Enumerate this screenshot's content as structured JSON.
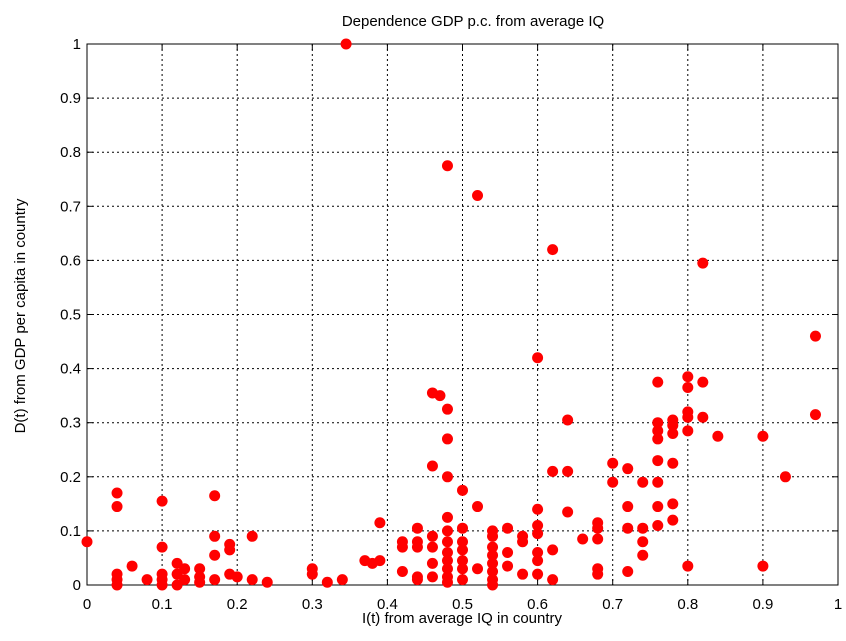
{
  "chart_data": {
    "type": "scatter",
    "title": "Dependence GDP p.c. from average IQ",
    "xlabel": "I(t) from average IQ in country",
    "ylabel": "D(t) from GDP per capita in country",
    "xlim": [
      0,
      1
    ],
    "ylim": [
      0,
      1
    ],
    "xticks": [
      "0",
      "0.1",
      "0.2",
      "0.3",
      "0.4",
      "0.5",
      "0.6",
      "0.7",
      "0.8",
      "0.9",
      "1"
    ],
    "yticks": [
      "0",
      "0.1",
      "0.2",
      "0.3",
      "0.4",
      "0.5",
      "0.6",
      "0.7",
      "0.8",
      "0.9",
      "1"
    ],
    "grid": true,
    "marker_color": "#ff0000",
    "points": [
      [
        0.0,
        0.08
      ],
      [
        0.04,
        0.17
      ],
      [
        0.04,
        0.145
      ],
      [
        0.04,
        0.02
      ],
      [
        0.04,
        0.01
      ],
      [
        0.04,
        0.0
      ],
      [
        0.06,
        0.035
      ],
      [
        0.08,
        0.01
      ],
      [
        0.1,
        0.155
      ],
      [
        0.1,
        0.07
      ],
      [
        0.1,
        0.02
      ],
      [
        0.1,
        0.01
      ],
      [
        0.1,
        0.0
      ],
      [
        0.12,
        0.04
      ],
      [
        0.12,
        0.02
      ],
      [
        0.12,
        0.0
      ],
      [
        0.13,
        0.03
      ],
      [
        0.13,
        0.01
      ],
      [
        0.15,
        0.03
      ],
      [
        0.15,
        0.015
      ],
      [
        0.15,
        0.005
      ],
      [
        0.17,
        0.165
      ],
      [
        0.17,
        0.09
      ],
      [
        0.17,
        0.055
      ],
      [
        0.17,
        0.01
      ],
      [
        0.19,
        0.075
      ],
      [
        0.19,
        0.065
      ],
      [
        0.19,
        0.02
      ],
      [
        0.2,
        0.015
      ],
      [
        0.22,
        0.09
      ],
      [
        0.22,
        0.01
      ],
      [
        0.24,
        0.005
      ],
      [
        0.3,
        0.03
      ],
      [
        0.3,
        0.02
      ],
      [
        0.32,
        0.005
      ],
      [
        0.34,
        0.01
      ],
      [
        0.345,
        1.0
      ],
      [
        0.37,
        0.045
      ],
      [
        0.38,
        0.04
      ],
      [
        0.39,
        0.115
      ],
      [
        0.39,
        0.045
      ],
      [
        0.42,
        0.08
      ],
      [
        0.42,
        0.07
      ],
      [
        0.42,
        0.025
      ],
      [
        0.44,
        0.105
      ],
      [
        0.44,
        0.08
      ],
      [
        0.44,
        0.07
      ],
      [
        0.44,
        0.015
      ],
      [
        0.44,
        0.01
      ],
      [
        0.46,
        0.355
      ],
      [
        0.46,
        0.22
      ],
      [
        0.46,
        0.09
      ],
      [
        0.46,
        0.07
      ],
      [
        0.46,
        0.04
      ],
      [
        0.46,
        0.015
      ],
      [
        0.47,
        0.35
      ],
      [
        0.48,
        0.775
      ],
      [
        0.48,
        0.325
      ],
      [
        0.48,
        0.27
      ],
      [
        0.48,
        0.2
      ],
      [
        0.48,
        0.125
      ],
      [
        0.48,
        0.1
      ],
      [
        0.48,
        0.08
      ],
      [
        0.48,
        0.06
      ],
      [
        0.48,
        0.045
      ],
      [
        0.48,
        0.03
      ],
      [
        0.48,
        0.015
      ],
      [
        0.48,
        0.005
      ],
      [
        0.5,
        0.175
      ],
      [
        0.5,
        0.105
      ],
      [
        0.5,
        0.08
      ],
      [
        0.5,
        0.065
      ],
      [
        0.5,
        0.045
      ],
      [
        0.5,
        0.03
      ],
      [
        0.5,
        0.01
      ],
      [
        0.52,
        0.72
      ],
      [
        0.52,
        0.145
      ],
      [
        0.52,
        0.03
      ],
      [
        0.54,
        0.1
      ],
      [
        0.54,
        0.09
      ],
      [
        0.54,
        0.07
      ],
      [
        0.54,
        0.055
      ],
      [
        0.54,
        0.04
      ],
      [
        0.54,
        0.025
      ],
      [
        0.54,
        0.01
      ],
      [
        0.54,
        0.0
      ],
      [
        0.56,
        0.105
      ],
      [
        0.56,
        0.06
      ],
      [
        0.56,
        0.035
      ],
      [
        0.58,
        0.09
      ],
      [
        0.58,
        0.08
      ],
      [
        0.58,
        0.02
      ],
      [
        0.6,
        0.42
      ],
      [
        0.6,
        0.14
      ],
      [
        0.6,
        0.11
      ],
      [
        0.6,
        0.095
      ],
      [
        0.6,
        0.06
      ],
      [
        0.6,
        0.045
      ],
      [
        0.6,
        0.02
      ],
      [
        0.62,
        0.62
      ],
      [
        0.62,
        0.21
      ],
      [
        0.62,
        0.065
      ],
      [
        0.62,
        0.01
      ],
      [
        0.64,
        0.305
      ],
      [
        0.64,
        0.21
      ],
      [
        0.64,
        0.135
      ],
      [
        0.66,
        0.085
      ],
      [
        0.68,
        0.115
      ],
      [
        0.68,
        0.105
      ],
      [
        0.68,
        0.085
      ],
      [
        0.68,
        0.03
      ],
      [
        0.68,
        0.02
      ],
      [
        0.7,
        0.225
      ],
      [
        0.7,
        0.19
      ],
      [
        0.72,
        0.215
      ],
      [
        0.72,
        0.145
      ],
      [
        0.72,
        0.105
      ],
      [
        0.72,
        0.025
      ],
      [
        0.74,
        0.19
      ],
      [
        0.74,
        0.105
      ],
      [
        0.74,
        0.08
      ],
      [
        0.74,
        0.055
      ],
      [
        0.76,
        0.375
      ],
      [
        0.76,
        0.3
      ],
      [
        0.76,
        0.285
      ],
      [
        0.76,
        0.27
      ],
      [
        0.76,
        0.23
      ],
      [
        0.76,
        0.19
      ],
      [
        0.76,
        0.145
      ],
      [
        0.76,
        0.11
      ],
      [
        0.78,
        0.305
      ],
      [
        0.78,
        0.295
      ],
      [
        0.78,
        0.28
      ],
      [
        0.78,
        0.225
      ],
      [
        0.78,
        0.15
      ],
      [
        0.78,
        0.12
      ],
      [
        0.8,
        0.385
      ],
      [
        0.8,
        0.365
      ],
      [
        0.8,
        0.32
      ],
      [
        0.8,
        0.31
      ],
      [
        0.8,
        0.285
      ],
      [
        0.8,
        0.035
      ],
      [
        0.82,
        0.595
      ],
      [
        0.82,
        0.375
      ],
      [
        0.82,
        0.31
      ],
      [
        0.84,
        0.275
      ],
      [
        0.9,
        0.275
      ],
      [
        0.9,
        0.035
      ],
      [
        0.93,
        0.2
      ],
      [
        0.97,
        0.46
      ],
      [
        0.97,
        0.315
      ]
    ]
  }
}
